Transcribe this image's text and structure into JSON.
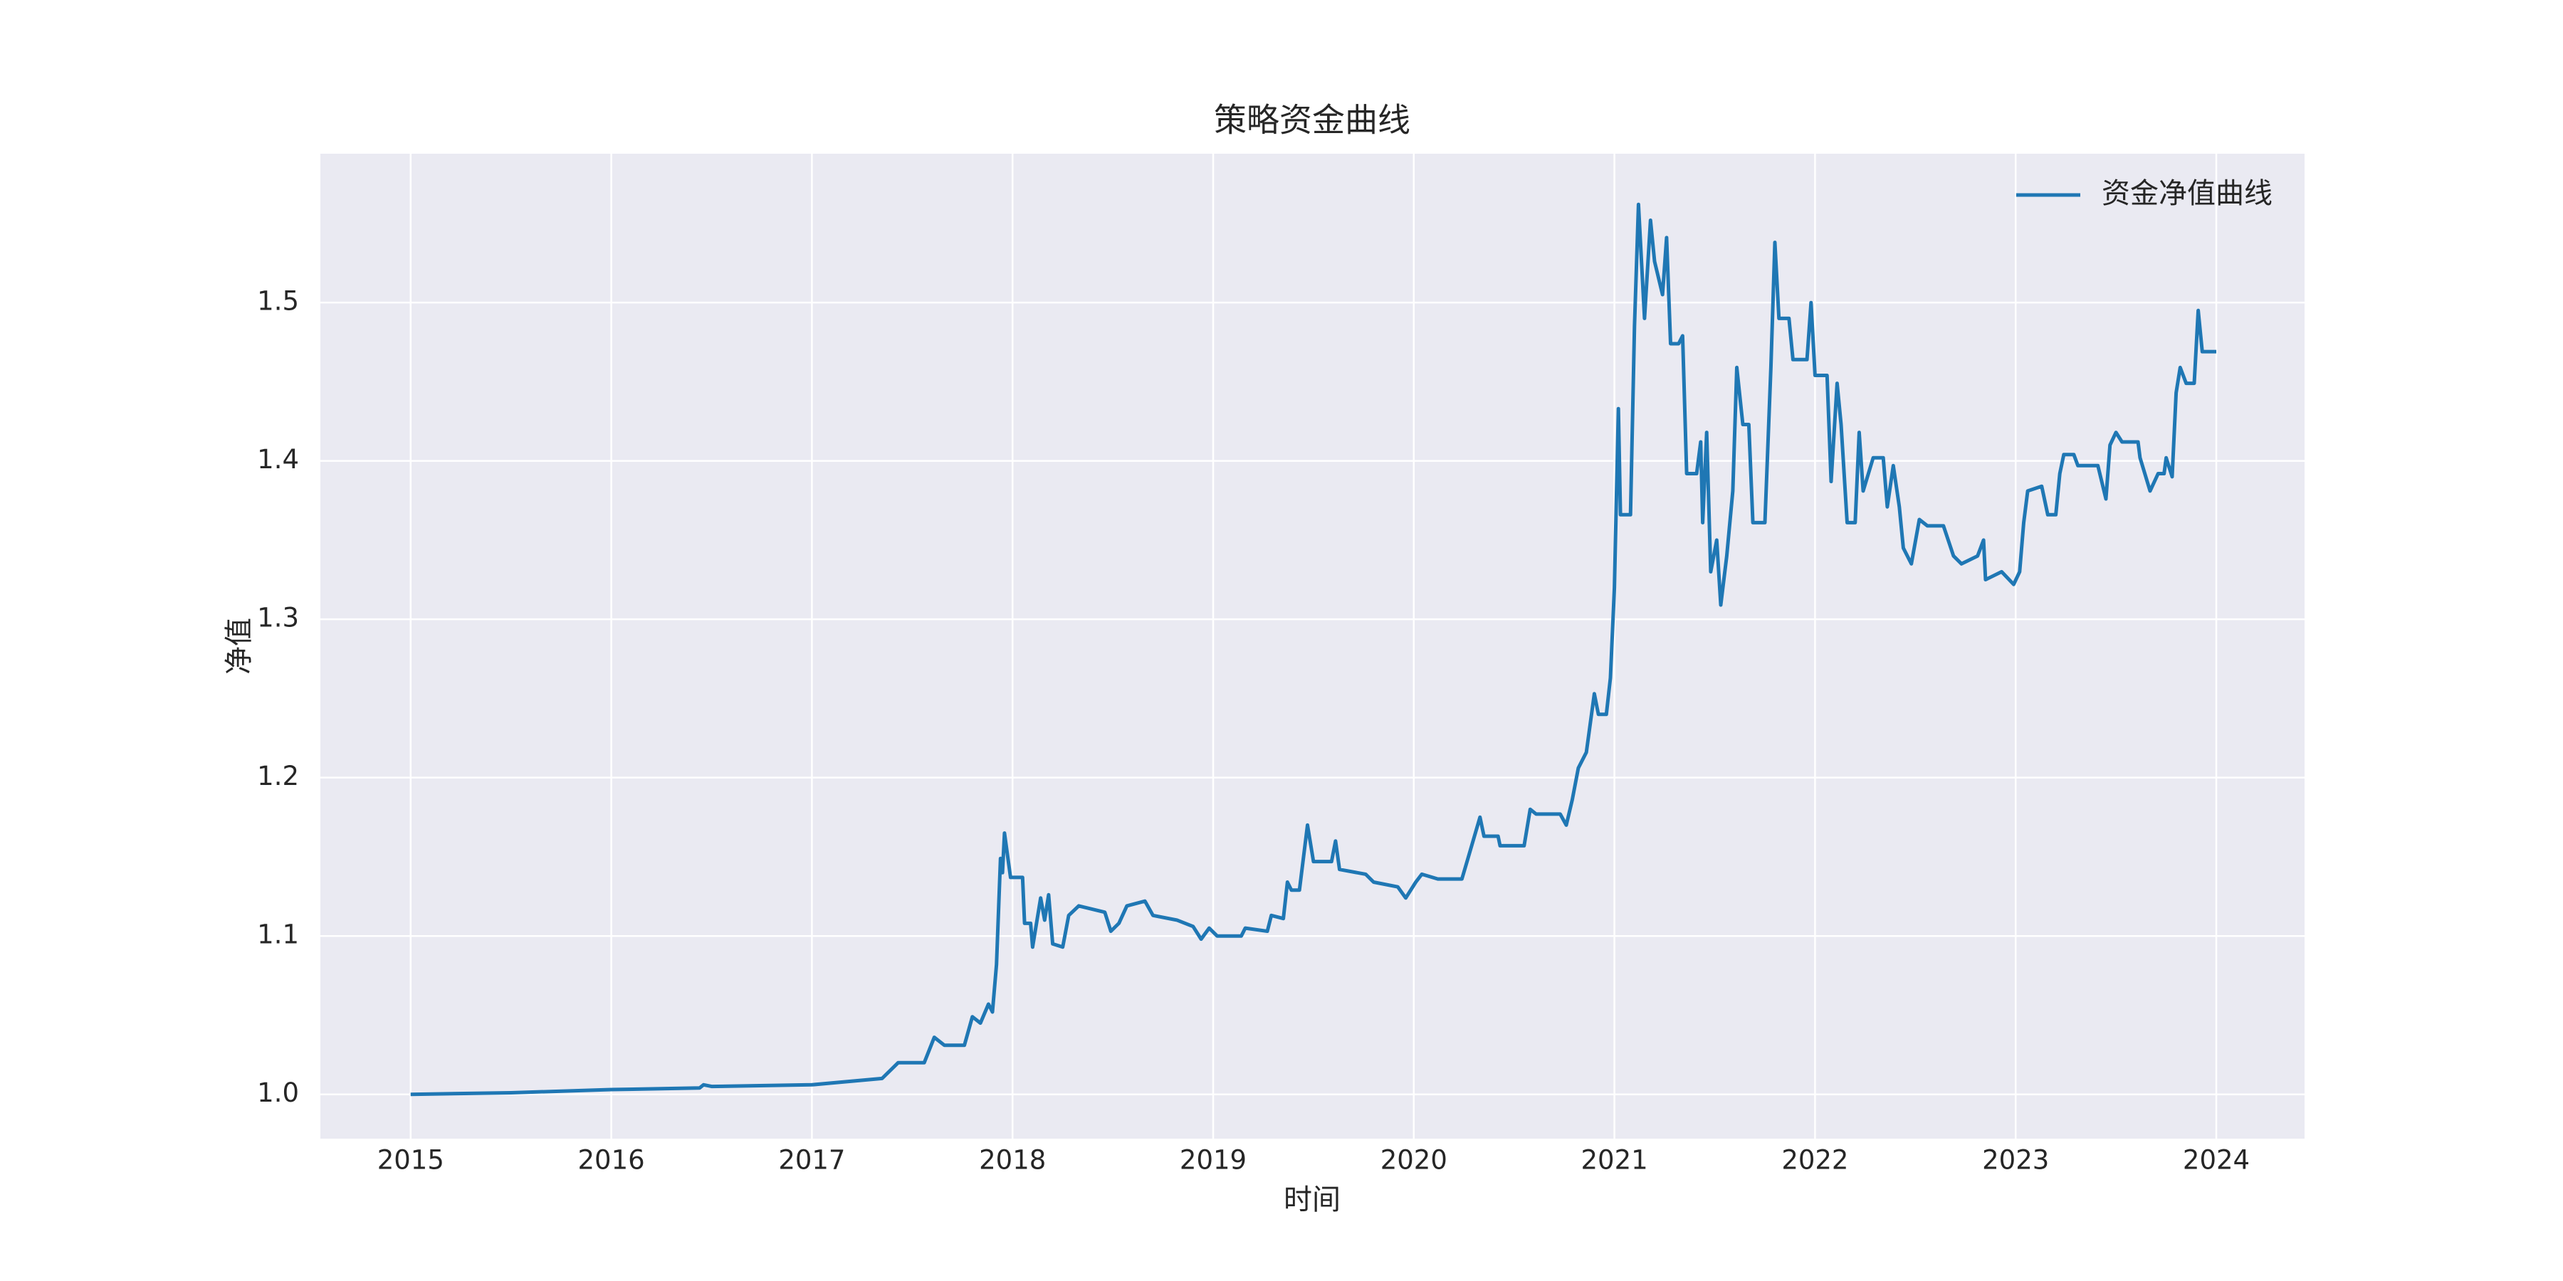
{
  "chart_data": {
    "type": "line",
    "title": "策略资金曲线",
    "xlabel": "时间",
    "ylabel": "净值",
    "x": [
      2015.0,
      2015.5,
      2016.0,
      2016.44,
      2016.46,
      2016.5,
      2017.0,
      2017.35,
      2017.43,
      2017.56,
      2017.61,
      2017.66,
      2017.76,
      2017.8,
      2017.84,
      2017.88,
      2017.9,
      2017.92,
      2017.94,
      2017.95,
      2017.96,
      2017.99,
      2018.05,
      2018.06,
      2018.09,
      2018.1,
      2018.14,
      2018.16,
      2018.18,
      2018.2,
      2018.25,
      2018.28,
      2018.33,
      2018.46,
      2018.49,
      2018.53,
      2018.57,
      2018.66,
      2018.7,
      2018.82,
      2018.9,
      2018.94,
      2018.98,
      2019.02,
      2019.14,
      2019.16,
      2019.27,
      2019.29,
      2019.35,
      2019.37,
      2019.39,
      2019.43,
      2019.47,
      2019.5,
      2019.59,
      2019.61,
      2019.63,
      2019.76,
      2019.8,
      2019.92,
      2019.96,
      2020.01,
      2020.04,
      2020.12,
      2020.24,
      2020.27,
      2020.33,
      2020.35,
      2020.42,
      2020.43,
      2020.55,
      2020.58,
      2020.61,
      2020.73,
      2020.76,
      2020.79,
      2020.82,
      2020.86,
      2020.9,
      2020.92,
      2020.96,
      2020.98,
      2021.0,
      2021.02,
      2021.03,
      2021.08,
      2021.1,
      2021.12,
      2021.15,
      2021.18,
      2021.2,
      2021.24,
      2021.26,
      2021.28,
      2021.32,
      2021.34,
      2021.36,
      2021.41,
      2021.43,
      2021.44,
      2021.46,
      2021.48,
      2021.51,
      2021.53,
      2021.56,
      2021.59,
      2021.61,
      2021.64,
      2021.67,
      2021.69,
      2021.75,
      2021.78,
      2021.8,
      2021.82,
      2021.87,
      2021.89,
      2021.96,
      2021.98,
      2022.0,
      2022.06,
      2022.08,
      2022.11,
      2022.13,
      2022.16,
      2022.2,
      2022.22,
      2022.24,
      2022.29,
      2022.34,
      2022.36,
      2022.39,
      2022.42,
      2022.44,
      2022.48,
      2022.52,
      2022.56,
      2022.64,
      2022.69,
      2022.73,
      2022.81,
      2022.84,
      2022.85,
      2022.93,
      2022.99,
      2023.02,
      2023.04,
      2023.06,
      2023.13,
      2023.16,
      2023.2,
      2023.22,
      2023.24,
      2023.29,
      2023.31,
      2023.41,
      2023.45,
      2023.47,
      2023.5,
      2023.53,
      2023.61,
      2023.62,
      2023.67,
      2023.71,
      2023.74,
      2023.75,
      2023.78,
      2023.8,
      2023.82,
      2023.85,
      2023.89,
      2023.91,
      2023.93,
      2024.0
    ],
    "series": [
      {
        "name": "资金净值曲线",
        "color": "#1f77b4",
        "values": [
          1.0,
          1.001,
          1.003,
          1.004,
          1.006,
          1.005,
          1.006,
          1.01,
          1.02,
          1.02,
          1.036,
          1.031,
          1.031,
          1.049,
          1.045,
          1.057,
          1.052,
          1.082,
          1.149,
          1.14,
          1.165,
          1.137,
          1.137,
          1.108,
          1.108,
          1.093,
          1.124,
          1.11,
          1.126,
          1.095,
          1.093,
          1.113,
          1.119,
          1.115,
          1.103,
          1.108,
          1.119,
          1.122,
          1.113,
          1.11,
          1.106,
          1.098,
          1.105,
          1.1,
          1.1,
          1.105,
          1.103,
          1.113,
          1.111,
          1.134,
          1.129,
          1.129,
          1.17,
          1.147,
          1.147,
          1.16,
          1.142,
          1.139,
          1.134,
          1.131,
          1.124,
          1.134,
          1.139,
          1.136,
          1.136,
          1.149,
          1.175,
          1.163,
          1.163,
          1.157,
          1.157,
          1.18,
          1.177,
          1.177,
          1.17,
          1.186,
          1.206,
          1.216,
          1.253,
          1.24,
          1.24,
          1.263,
          1.32,
          1.433,
          1.366,
          1.366,
          1.485,
          1.562,
          1.49,
          1.552,
          1.526,
          1.505,
          1.541,
          1.474,
          1.474,
          1.479,
          1.392,
          1.392,
          1.412,
          1.361,
          1.418,
          1.33,
          1.35,
          1.309,
          1.34,
          1.381,
          1.459,
          1.423,
          1.423,
          1.361,
          1.361,
          1.459,
          1.538,
          1.49,
          1.49,
          1.464,
          1.464,
          1.5,
          1.454,
          1.454,
          1.387,
          1.449,
          1.423,
          1.361,
          1.361,
          1.418,
          1.381,
          1.402,
          1.402,
          1.371,
          1.397,
          1.371,
          1.345,
          1.335,
          1.363,
          1.359,
          1.359,
          1.34,
          1.335,
          1.34,
          1.35,
          1.325,
          1.33,
          1.322,
          1.33,
          1.361,
          1.381,
          1.384,
          1.366,
          1.366,
          1.392,
          1.404,
          1.404,
          1.397,
          1.397,
          1.376,
          1.41,
          1.418,
          1.412,
          1.412,
          1.402,
          1.381,
          1.392,
          1.392,
          1.402,
          1.39,
          1.443,
          1.459,
          1.449,
          1.449,
          1.495,
          1.469,
          1.469
        ]
      }
    ],
    "xlim": [
      2014.55,
      2024.44
    ],
    "xticks": [
      2015,
      2016,
      2017,
      2018,
      2019,
      2020,
      2021,
      2022,
      2023,
      2024
    ],
    "ylim": [
      0.972,
      1.594
    ],
    "yticks": [
      {
        "value": 1.0,
        "label": "1.0"
      },
      1.1,
      1.2,
      1.3,
      1.4,
      1.5
    ],
    "grid": true,
    "legend": "upper right"
  }
}
